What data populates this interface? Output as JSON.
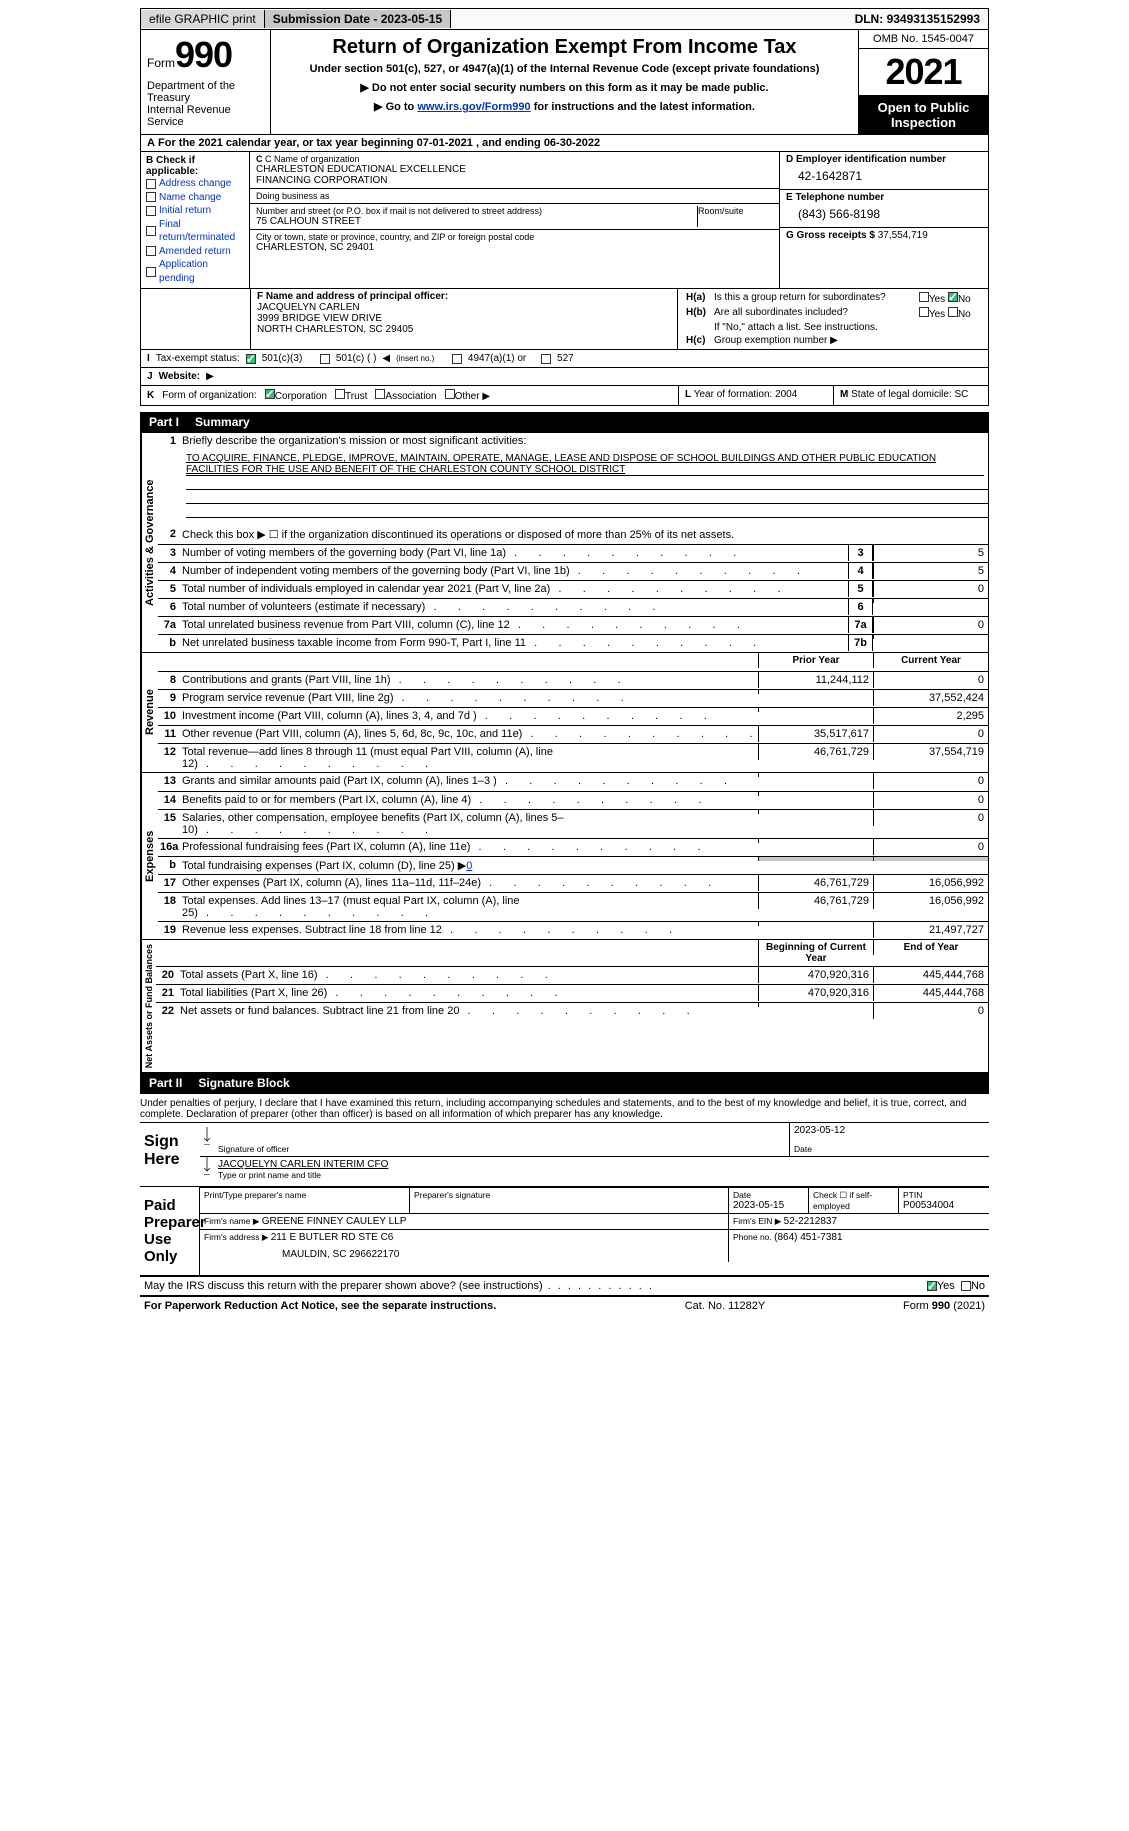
{
  "topbar": {
    "efile": "efile GRAPHIC print",
    "subdate_label": "Submission Date - ",
    "subdate": "2023-05-15",
    "dln_label": "DLN: ",
    "dln": "93493135152993"
  },
  "header": {
    "form_word": "Form",
    "form_num": "990",
    "title": "Return of Organization Exempt From Income Tax",
    "subtitle": "Under section 501(c), 527, or 4947(a)(1) of the Internal Revenue Code (except private foundations)",
    "note1": "Do not enter social security numbers on this form as it may be made public.",
    "note2_pre": "Go to ",
    "note2_link": "www.irs.gov/Form990",
    "note2_post": " for instructions and the latest information.",
    "dept": "Department of the Treasury\nInternal Revenue Service",
    "omb": "OMB No. 1545-0047",
    "year": "2021",
    "open": "Open to Public Inspection"
  },
  "rowA": {
    "label_a": "A",
    "text": "For the 2021 calendar year, or tax year beginning ",
    "begin": "07-01-2021",
    "mid": "  , and ending ",
    "end": "06-30-2022"
  },
  "colB": {
    "label": "B Check if applicable:",
    "items": [
      "Address change",
      "Name change",
      "Initial return",
      "Final return/terminated",
      "Amended return",
      "Application pending"
    ]
  },
  "colC": {
    "name_label": "C Name of organization",
    "name": "CHARLESTON EDUCATIONAL EXCELLENCE\nFINANCING CORPORATION",
    "dba_label": "Doing business as",
    "dba": "",
    "addr_label": "Number and street (or P.O. box if mail is not delivered to street address)",
    "addr": "75 CALHOUN STREET",
    "room_label": "Room/suite",
    "city_label": "City or town, state or province, country, and ZIP or foreign postal code",
    "city": "CHARLESTON, SC  29401"
  },
  "colD": {
    "ein_label": "D Employer identification number",
    "ein": "42-1642871",
    "tel_label": "E Telephone number",
    "tel": "(843) 566-8198",
    "gross_label": "G Gross receipts $ ",
    "gross": "37,554,719"
  },
  "colF": {
    "label": "F Name and address of principal officer:",
    "name": "JACQUELYN CARLEN",
    "addr1": "3999 BRIDGE VIEW DRIVE",
    "addr2": "NORTH CHARLESTON, SC  29405"
  },
  "colH": {
    "a_label": "H(a)",
    "a_text": "Is this a group return for subordinates?",
    "b_label": "H(b)",
    "b_text": "Are all subordinates included?",
    "b_note": "If \"No,\" attach a list. See instructions.",
    "c_label": "H(c)",
    "c_text": "Group exemption number",
    "yes": "Yes",
    "no": "No"
  },
  "rowI": {
    "label": "I",
    "text": "Tax-exempt status:",
    "opt1": "501(c)(3)",
    "opt2": "501(c) (   )",
    "opt2_hint": "(insert no.)",
    "opt3": "4947(a)(1) or",
    "opt4": "527"
  },
  "rowJ": {
    "label": "J",
    "text": "Website:",
    "arrow": "▶"
  },
  "rowK": {
    "label": "K",
    "text": "Form of organization:",
    "opts": [
      "Corporation",
      "Trust",
      "Association",
      "Other"
    ],
    "other_arrow": "▶"
  },
  "rowL": {
    "label": "L",
    "text": "Year of formation: ",
    "val": "2004"
  },
  "rowM": {
    "label": "M",
    "text": "State of legal domicile: ",
    "val": "SC"
  },
  "part1": {
    "num": "Part I",
    "title": "Summary"
  },
  "summary": {
    "mission_label": "Briefly describe the organization's mission or most significant activities:",
    "mission": "TO ACQUIRE, FINANCE, PLEDGE, IMPROVE, MAINTAIN, OPERATE, MANAGE, LEASE AND DISPOSE OF SCHOOL BUILDINGS AND OTHER PUBLIC EDUCATION FACILITIES FOR THE USE AND BENEFIT OF THE CHARLESTON COUNTY SCHOOL DISTRICT",
    "line2": "Check this box ▶ ☐ if the organization discontinued its operations or disposed of more than 25% of its net assets.",
    "sections": {
      "gov": "Activities & Governance",
      "rev": "Revenue",
      "exp": "Expenses",
      "net": "Net Assets or Fund Balances"
    },
    "rows_gov": [
      {
        "n": "3",
        "t": "Number of voting members of the governing body (Part VI, line 1a)",
        "box": "3",
        "val": "5"
      },
      {
        "n": "4",
        "t": "Number of independent voting members of the governing body (Part VI, line 1b)",
        "box": "4",
        "val": "5"
      },
      {
        "n": "5",
        "t": "Total number of individuals employed in calendar year 2021 (Part V, line 2a)",
        "box": "5",
        "val": "0"
      },
      {
        "n": "6",
        "t": "Total number of volunteers (estimate if necessary)",
        "box": "6",
        "val": ""
      },
      {
        "n": "7a",
        "t": "Total unrelated business revenue from Part VIII, column (C), line 12",
        "box": "7a",
        "val": "0"
      },
      {
        "n": "b",
        "t": "Net unrelated business taxable income from Form 990-T, Part I, line 11",
        "box": "7b",
        "val": ""
      }
    ],
    "col_prior": "Prior Year",
    "col_curr": "Current Year",
    "col_begin": "Beginning of Current Year",
    "col_end": "End of Year",
    "rows_rev": [
      {
        "n": "8",
        "t": "Contributions and grants (Part VIII, line 1h)",
        "p": "11,244,112",
        "c": "0"
      },
      {
        "n": "9",
        "t": "Program service revenue (Part VIII, line 2g)",
        "p": "",
        "c": "37,552,424"
      },
      {
        "n": "10",
        "t": "Investment income (Part VIII, column (A), lines 3, 4, and 7d )",
        "p": "",
        "c": "2,295"
      },
      {
        "n": "11",
        "t": "Other revenue (Part VIII, column (A), lines 5, 6d, 8c, 9c, 10c, and 11e)",
        "p": "35,517,617",
        "c": "0"
      },
      {
        "n": "12",
        "t": "Total revenue—add lines 8 through 11 (must equal Part VIII, column (A), line 12)",
        "p": "46,761,729",
        "c": "37,554,719"
      }
    ],
    "rows_exp": [
      {
        "n": "13",
        "t": "Grants and similar amounts paid (Part IX, column (A), lines 1–3 )",
        "p": "",
        "c": "0"
      },
      {
        "n": "14",
        "t": "Benefits paid to or for members (Part IX, column (A), line 4)",
        "p": "",
        "c": "0"
      },
      {
        "n": "15",
        "t": "Salaries, other compensation, employee benefits (Part IX, column (A), lines 5–10)",
        "p": "",
        "c": "0"
      },
      {
        "n": "16a",
        "t": "Professional fundraising fees (Part IX, column (A), line 11e)",
        "p": "",
        "c": "0"
      },
      {
        "n": "b",
        "t": "Total fundraising expenses (Part IX, column (D), line 25) ▶",
        "link": "0",
        "shade": true
      },
      {
        "n": "17",
        "t": "Other expenses (Part IX, column (A), lines 11a–11d, 11f–24e)",
        "p": "46,761,729",
        "c": "16,056,992"
      },
      {
        "n": "18",
        "t": "Total expenses. Add lines 13–17 (must equal Part IX, column (A), line 25)",
        "p": "46,761,729",
        "c": "16,056,992"
      },
      {
        "n": "19",
        "t": "Revenue less expenses. Subtract line 18 from line 12",
        "p": "",
        "c": "21,497,727"
      }
    ],
    "rows_net": [
      {
        "n": "20",
        "t": "Total assets (Part X, line 16)",
        "p": "470,920,316",
        "c": "445,444,768"
      },
      {
        "n": "21",
        "t": "Total liabilities (Part X, line 26)",
        "p": "470,920,316",
        "c": "445,444,768"
      },
      {
        "n": "22",
        "t": "Net assets or fund balances. Subtract line 21 from line 20",
        "p": "",
        "c": "0"
      }
    ]
  },
  "part2": {
    "num": "Part II",
    "title": "Signature Block"
  },
  "sig": {
    "decl": "Under penalties of perjury, I declare that I have examined this return, including accompanying schedules and statements, and to the best of my knowledge and belief, it is true, correct, and complete. Declaration of preparer (other than officer) is based on all information of which preparer has any knowledge.",
    "sign_here": "Sign Here",
    "date": "2023-05-12",
    "sig_of_officer": "Signature of officer",
    "date_label": "Date",
    "name_title": "JACQUELYN CARLEN  INTERIM CFO",
    "type_label": "Type or print name and title",
    "paid_label": "Paid Preparer Use Only",
    "col_print": "Print/Type preparer's name",
    "col_sig": "Preparer's signature",
    "col_date": "Date",
    "prep_date": "2023-05-15",
    "col_check": "Check ☐ if self-employed",
    "col_ptin": "PTIN",
    "ptin": "P00534004",
    "firm_name_label": "Firm's name    ▶ ",
    "firm_name": "GREENE FINNEY CAULEY LLP",
    "firm_ein_label": "Firm's EIN ▶ ",
    "firm_ein": "52-2212837",
    "firm_addr_label": "Firm's address ▶ ",
    "firm_addr1": "211 E BUTLER RD STE C6",
    "firm_addr2": "MAULDIN, SC  296622170",
    "firm_phone_label": "Phone no. ",
    "firm_phone": "(864) 451-7381"
  },
  "footer": {
    "discuss": "May the IRS discuss this return with the preparer shown above? (see instructions)",
    "yes": "Yes",
    "no": "No",
    "notice": "For Paperwork Reduction Act Notice, see the separate instructions.",
    "cat": "Cat. No. 11282Y",
    "form": "Form 990 (2021)"
  }
}
